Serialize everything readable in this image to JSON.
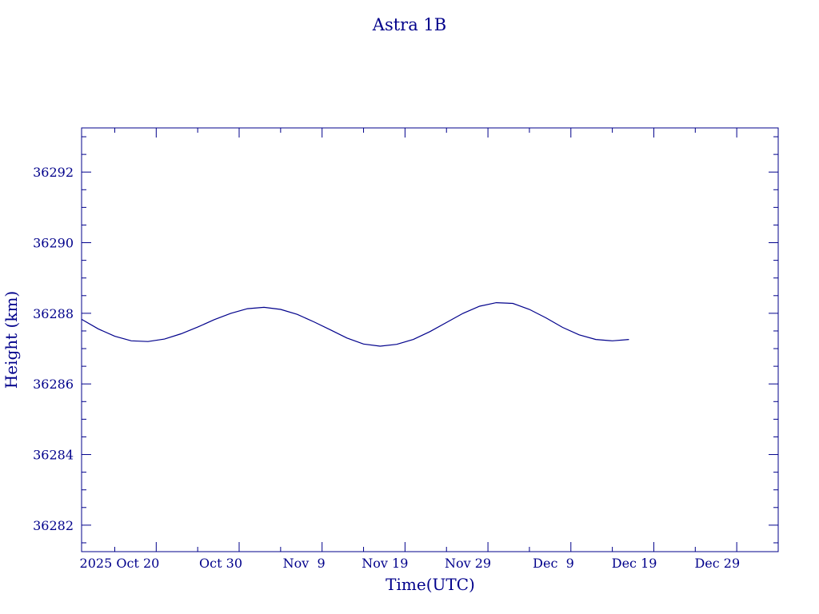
{
  "chart_data": {
    "type": "line",
    "title": "Astra 1B",
    "xlabel": "Time(UTC)",
    "ylabel": "Height (km)",
    "x_tick_labels": [
      "2025 Oct 20",
      "Oct 30",
      "Nov  9",
      "Nov 19",
      "Nov 29",
      "Dec  9",
      "Dec 19",
      "Dec 29"
    ],
    "y_tick_labels": [
      "36282",
      "36284",
      "36286",
      "36288",
      "36290",
      "36292"
    ],
    "y_ticks": [
      36282,
      36284,
      36286,
      36288,
      36290,
      36292
    ],
    "ylim": [
      36281.25,
      36293.25
    ],
    "x_ticks": [
      "2025-10-20",
      "2025-10-30",
      "2025-11-09",
      "2025-11-19",
      "2025-11-29",
      "2025-12-09",
      "2025-12-19",
      "2025-12-29"
    ],
    "xlim": [
      "2025-10-11",
      "2026-01-03"
    ],
    "grid": false,
    "color": "#00008b",
    "series": [
      {
        "x": [
          "2025-10-11",
          "2025-10-13",
          "2025-10-15",
          "2025-10-17",
          "2025-10-19",
          "2025-10-21",
          "2025-10-23",
          "2025-10-25",
          "2025-10-27",
          "2025-10-29",
          "2025-10-31",
          "2025-11-02",
          "2025-11-04",
          "2025-11-06",
          "2025-11-08",
          "2025-11-10",
          "2025-11-12",
          "2025-11-14",
          "2025-11-16",
          "2025-11-18",
          "2025-11-20",
          "2025-11-22",
          "2025-11-24",
          "2025-11-26",
          "2025-11-28",
          "2025-11-30",
          "2025-12-02",
          "2025-12-04",
          "2025-12-06",
          "2025-12-08",
          "2025-12-10",
          "2025-12-12",
          "2025-12-14",
          "2025-12-16"
        ],
        "values": [
          36287.83,
          36287.56,
          36287.35,
          36287.22,
          36287.2,
          36287.27,
          36287.42,
          36287.61,
          36287.82,
          36288.0,
          36288.13,
          36288.17,
          36288.11,
          36287.97,
          36287.76,
          36287.53,
          36287.3,
          36287.13,
          36287.07,
          36287.12,
          36287.26,
          36287.48,
          36287.74,
          36288.0,
          36288.2,
          36288.3,
          36288.28,
          36288.11,
          36287.87,
          36287.6,
          36287.39,
          36287.26,
          36287.22,
          36287.26
        ]
      }
    ]
  }
}
